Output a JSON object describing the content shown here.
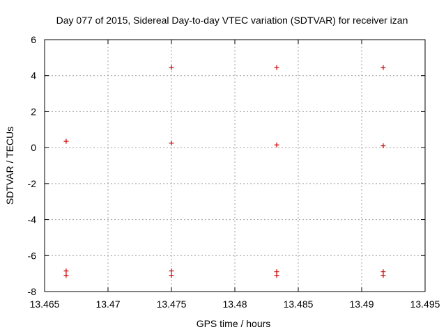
{
  "chart_data": {
    "type": "scatter",
    "title": "Day 077 of 2015, Sidereal Day-to-day VTEC variation (SDTVAR) for receiver izan",
    "xlabel": "GPS time / hours",
    "ylabel": "SDTVAR / TECUs",
    "xlim": [
      13.465,
      13.495
    ],
    "ylim": [
      -8,
      6
    ],
    "xticks": [
      13.465,
      13.47,
      13.475,
      13.48,
      13.485,
      13.49,
      13.495
    ],
    "xtick_labels": [
      "13.465",
      "13.47",
      "13.475",
      "13.48",
      "13.485",
      "13.49",
      "13.495"
    ],
    "yticks": [
      -8,
      -6,
      -4,
      -2,
      0,
      2,
      4,
      6
    ],
    "ytick_labels": [
      "-8",
      "-6",
      "-4",
      "-2",
      "0",
      "2",
      "4",
      "6"
    ],
    "grid": true,
    "marker": "plus",
    "color": "#cc0000",
    "series": [
      {
        "x": [
          13.4667,
          13.4667,
          13.4667,
          13.475,
          13.475,
          13.475,
          13.475,
          13.4833,
          13.4833,
          13.4833,
          13.4833,
          13.4917,
          13.4917,
          13.4917,
          13.4917
        ],
        "y": [
          0.35,
          -6.85,
          -7.1,
          4.45,
          0.25,
          -6.85,
          -7.1,
          4.45,
          0.15,
          -6.9,
          -7.1,
          4.45,
          0.1,
          -6.9,
          -7.1
        ]
      }
    ]
  }
}
